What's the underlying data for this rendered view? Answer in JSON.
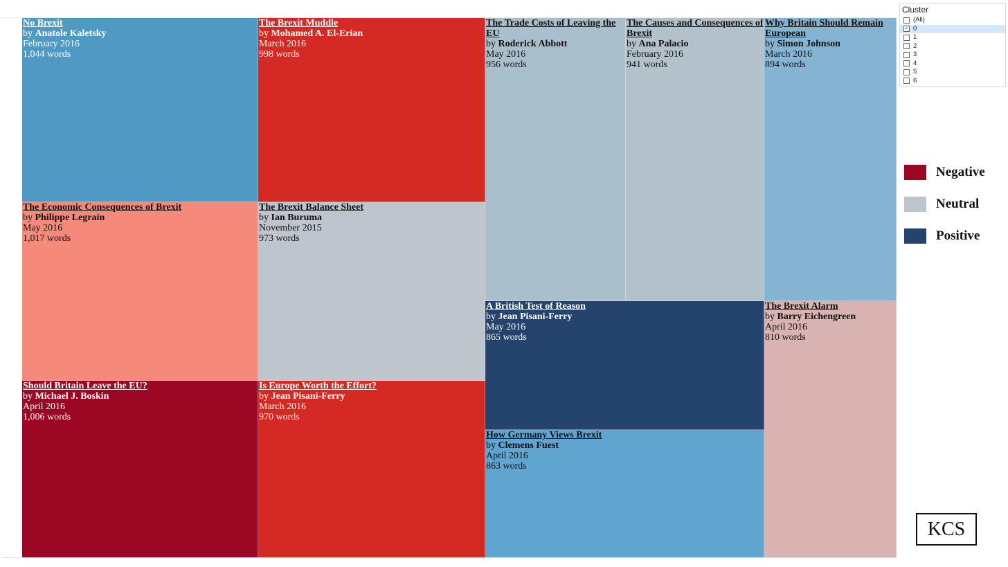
{
  "chart_data": {
    "type": "treemap",
    "size_measure": "words",
    "items": [
      {
        "title": "No Brexit",
        "author": "Anatole Kaletsky",
        "date": "February 2016",
        "words_label": "1,044 words",
        "words": 1044,
        "color": "#4f9ac4"
      },
      {
        "title": "The Brexit Muddle",
        "author": "Mohamed A. El-Erian",
        "date": "March 2016",
        "words_label": "998 words",
        "words": 998,
        "color": "#d52923"
      },
      {
        "title": "The Trade Costs of Leaving the EU",
        "author": "Roderick Abbott",
        "date": "May 2016",
        "words_label": "956 words",
        "words": 956,
        "color": "#a9bfcb"
      },
      {
        "title": "The Causes and Consequences of Brexit",
        "author": "Ana Palacio",
        "date": "February 2016",
        "words_label": "941 words",
        "words": 941,
        "color": "#b3c2ca"
      },
      {
        "title": "Why Britain Should Remain European",
        "author": "Simon Johnson",
        "date": "March 2016",
        "words_label": "894 words",
        "words": 894,
        "color": "#85b4d2"
      },
      {
        "title": "The Economic Consequences of Brexit",
        "author": "Philippe Legrain",
        "date": "May 2016",
        "words_label": "1,017 words",
        "words": 1017,
        "color": "#f58a7b"
      },
      {
        "title": "The Brexit Balance Sheet",
        "author": "Ian Buruma",
        "date": "November 2015",
        "words_label": "973 words",
        "words": 973,
        "color": "#bec5cc"
      },
      {
        "title": "A British Test of Reason",
        "author": "Jean Pisani-Ferry",
        "date": "May 2016",
        "words_label": "865 words",
        "words": 865,
        "color": "#24446e"
      },
      {
        "title": "The Brexit Alarm",
        "author": "Barry Eichengreen",
        "date": "April 2016",
        "words_label": "810 words",
        "words": 810,
        "color": "#d8b3b1"
      },
      {
        "title": "Should Britain Leave the EU?",
        "author": "Michael J. Boskin",
        "date": "April 2016",
        "words_label": "1,006 words",
        "words": 1006,
        "color": "#9b0722"
      },
      {
        "title": "Is Europe Worth the Effort?",
        "author": "Jean Pisani-Ferry",
        "date": "March 2016",
        "words_label": "970 words",
        "words": 970,
        "color": "#d52923"
      },
      {
        "title": "How Germany Views Brexit",
        "author": "Clemens Fuest",
        "date": "April 2016",
        "words_label": "863 words",
        "words": 863,
        "color": "#5fa5cf"
      }
    ]
  },
  "by_prefix": "by",
  "filter": {
    "title": "Cluster",
    "options": [
      {
        "label": "(All)",
        "checked": false
      },
      {
        "label": "0",
        "checked": true
      },
      {
        "label": "1",
        "checked": false
      },
      {
        "label": "2",
        "checked": false
      },
      {
        "label": "3",
        "checked": false
      },
      {
        "label": "4",
        "checked": false
      },
      {
        "label": "5",
        "checked": false
      },
      {
        "label": "6",
        "checked": false
      }
    ]
  },
  "legend": [
    {
      "label": "Negative",
      "color": "#9b0722"
    },
    {
      "label": "Neutral",
      "color": "#bec5cc"
    },
    {
      "label": "Positive",
      "color": "#24446e"
    }
  ],
  "logo_text": "KCS"
}
